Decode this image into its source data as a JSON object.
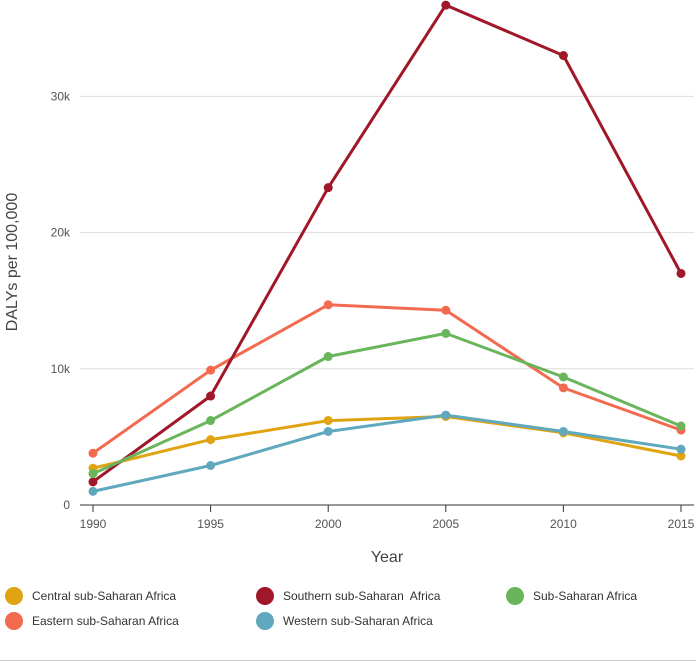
{
  "chart_data": {
    "type": "line",
    "x": [
      1990,
      1995,
      2000,
      2005,
      2010,
      2015
    ],
    "xlabel": "Year",
    "ylabel": "DALYs per 100,000",
    "ylim": [
      0,
      37000
    ],
    "y_ticks": [
      0,
      10000,
      20000,
      30000
    ],
    "y_tick_labels": [
      "0",
      "10k",
      "20k",
      "30k"
    ],
    "x_tick_labels": [
      "1990",
      "1995",
      "2000",
      "2005",
      "2010",
      "2015"
    ],
    "grid": "horizontal",
    "legend_position": "bottom",
    "series": [
      {
        "name": "Central sub-Saharan Africa",
        "color": "#e0a312",
        "values": [
          2700,
          4800,
          6200,
          6500,
          5300,
          3600
        ]
      },
      {
        "name": "Eastern sub-Saharan Africa",
        "color": "#f26a4f",
        "values": [
          3800,
          9900,
          14700,
          14300,
          8600,
          5500
        ]
      },
      {
        "name": "Southern sub-Saharan  Africa",
        "color": "#a0172a",
        "values": [
          1700,
          8000,
          23300,
          36700,
          33000,
          17000
        ]
      },
      {
        "name": "Western sub-Saharan Africa",
        "color": "#5fa8bd",
        "values": [
          1000,
          2900,
          5400,
          6600,
          5400,
          4100
        ]
      },
      {
        "name": "Sub-Saharan Africa",
        "color": "#6ab55c",
        "values": [
          2300,
          6200,
          10900,
          12600,
          9400,
          5800
        ]
      }
    ]
  }
}
